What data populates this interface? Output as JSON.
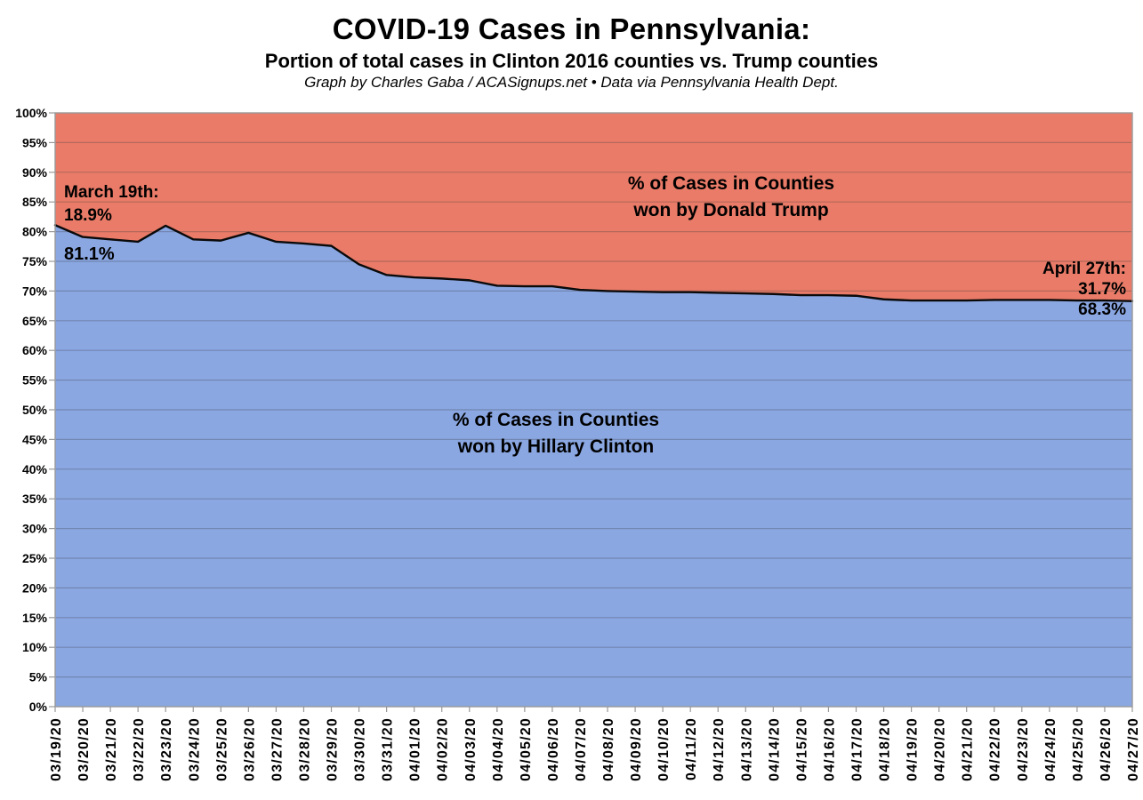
{
  "header": {
    "title": "COVID-19 Cases in Pennsylvania:",
    "subtitle": "Portion of total cases in Clinton 2016 counties vs. Trump counties",
    "attribution": "Graph by Charles Gaba / ACASignups.net  •  Data via Pennsylvania Health Dept."
  },
  "chart_data": {
    "type": "area",
    "stacked": true,
    "title": "COVID-19 Cases in Pennsylvania: Portion of total cases in Clinton 2016 counties vs. Trump counties",
    "xlabel": "",
    "ylabel": "",
    "ylim": [
      0,
      100
    ],
    "ytick_step": 5,
    "grid": true,
    "legend_position": "none",
    "x": [
      "03/19/20",
      "03/20/20",
      "03/21/20",
      "03/22/20",
      "03/23/20",
      "03/24/20",
      "03/25/20",
      "03/26/20",
      "03/27/20",
      "03/28/20",
      "03/29/20",
      "03/30/20",
      "03/31/20",
      "04/01/20",
      "04/02/20",
      "04/03/20",
      "04/04/20",
      "04/05/20",
      "04/06/20",
      "04/07/20",
      "04/08/20",
      "04/09/20",
      "04/10/20",
      "04/11/20",
      "04/12/20",
      "04/13/20",
      "04/14/20",
      "04/15/20",
      "04/16/20",
      "04/17/20",
      "04/18/20",
      "04/19/20",
      "04/20/20",
      "04/21/20",
      "04/22/20",
      "04/23/20",
      "04/24/20",
      "04/25/20",
      "04/26/20",
      "04/27/20"
    ],
    "yticks": [
      "0%",
      "5%",
      "10%",
      "15%",
      "20%",
      "25%",
      "30%",
      "35%",
      "40%",
      "45%",
      "50%",
      "55%",
      "60%",
      "65%",
      "70%",
      "75%",
      "80%",
      "85%",
      "90%",
      "95%",
      "100%"
    ],
    "series": [
      {
        "name": "% of Cases in Counties won by Hillary Clinton",
        "color": "#8AA7E2",
        "values": [
          81.1,
          79.1,
          78.7,
          78.3,
          81.0,
          78.7,
          78.5,
          79.8,
          78.3,
          78.0,
          77.6,
          74.5,
          72.7,
          72.3,
          72.1,
          71.8,
          70.9,
          70.8,
          70.8,
          70.2,
          70.0,
          69.9,
          69.8,
          69.8,
          69.7,
          69.6,
          69.5,
          69.3,
          69.3,
          69.2,
          68.6,
          68.4,
          68.4,
          68.4,
          68.5,
          68.5,
          68.5,
          68.4,
          68.4,
          68.3
        ]
      },
      {
        "name": "% of Cases in Counties won by Donald Trump",
        "color": "#E97B68",
        "values": [
          18.9,
          20.9,
          21.3,
          21.7,
          19.0,
          21.3,
          21.5,
          20.2,
          21.7,
          22.0,
          22.4,
          25.5,
          27.3,
          27.7,
          27.9,
          28.2,
          29.1,
          29.2,
          29.2,
          29.8,
          30.0,
          30.1,
          30.2,
          30.2,
          30.3,
          30.4,
          30.5,
          30.7,
          30.7,
          30.8,
          31.4,
          31.6,
          31.6,
          31.6,
          31.5,
          31.5,
          31.5,
          31.6,
          31.6,
          31.7
        ]
      }
    ],
    "area_labels": {
      "trump_line1": "% of Cases in Counties",
      "trump_line2": "won by Donald Trump",
      "clinton_line1": "% of Cases in Counties",
      "clinton_line2": "won by Hillary Clinton"
    },
    "annotations": {
      "start_label": "March 19th:",
      "start_trump": "18.9%",
      "start_clinton": "81.1%",
      "end_label": "April 27th:",
      "end_trump": "31.7%",
      "end_clinton": "68.3%"
    },
    "colors": {
      "clinton_fill": "#8AA7E2",
      "trump_fill": "#E97B68",
      "boundary_line": "#0A0A0A",
      "grid_line": "#3C3C3C",
      "axis": "#999999",
      "text": "#000000"
    }
  }
}
